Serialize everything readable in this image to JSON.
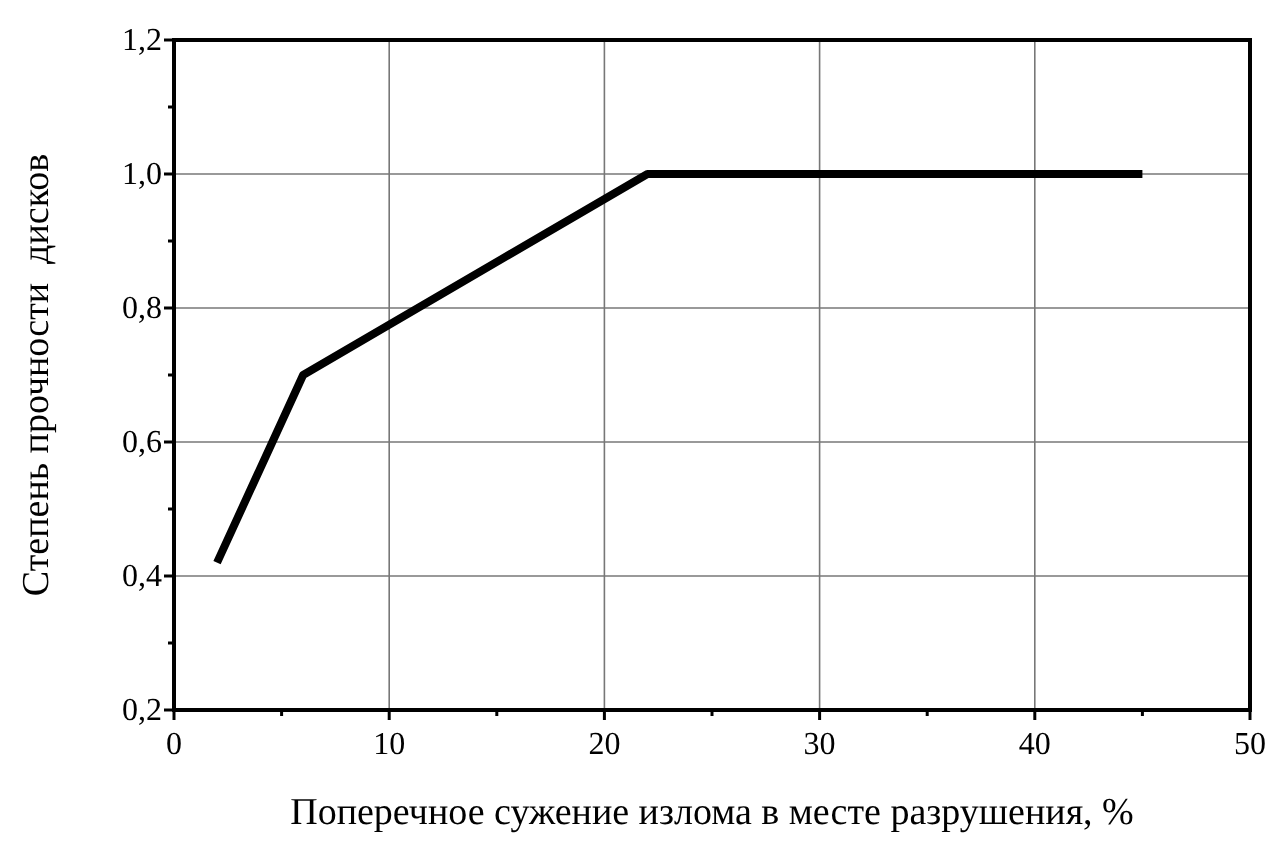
{
  "chart_data": {
    "type": "line",
    "xlabel": "Поперечное сужение излома в месте разрушения, %",
    "ylabel": "Степень прочности  дисков",
    "x": [
      2,
      6,
      22,
      45
    ],
    "series": [
      {
        "color": "#000000",
        "values": [
          0.42,
          0.7,
          1.0,
          1.0
        ]
      }
    ],
    "xlim": [
      0,
      50
    ],
    "xticks": [
      0,
      {
        "value": 5,
        "label": null
      },
      10,
      {
        "value": 15,
        "label": null
      },
      20,
      {
        "value": 25,
        "label": null
      },
      30,
      {
        "value": 35,
        "label": null
      },
      40,
      {
        "value": 45,
        "label": null
      },
      50
    ],
    "ylim": [
      0.2,
      1.2
    ],
    "yticks": [
      {
        "value": 0.2,
        "label": "0,2"
      },
      {
        "value": 0.3,
        "label": null
      },
      {
        "value": 0.4,
        "label": "0,4"
      },
      {
        "value": 0.5,
        "label": null
      },
      {
        "value": 0.6,
        "label": "0,6"
      },
      {
        "value": 0.7,
        "label": null
      },
      {
        "value": 0.8,
        "label": "0,8"
      },
      {
        "value": 0.9,
        "label": null
      },
      {
        "value": 1.0,
        "label": "1,0"
      },
      {
        "value": 1.1,
        "label": null
      },
      {
        "value": 1.2,
        "label": "1,2"
      }
    ],
    "grid": true,
    "marker": "none",
    "line_style": "solid"
  }
}
